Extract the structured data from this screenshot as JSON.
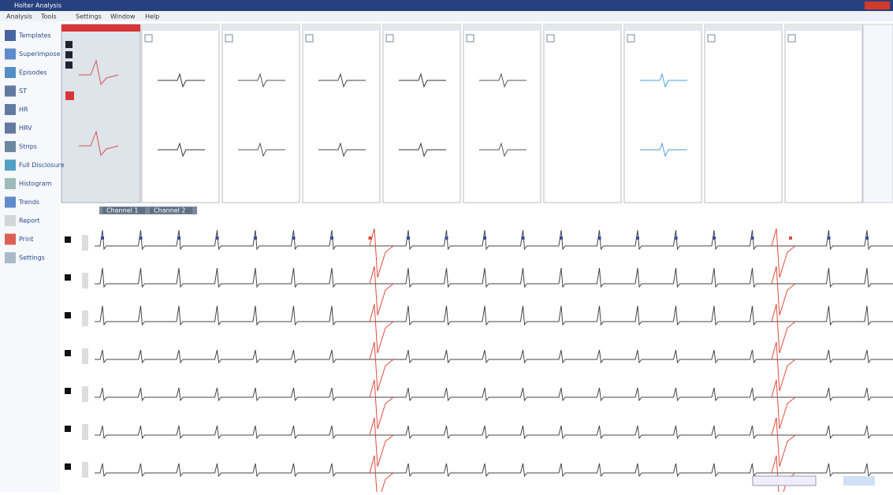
{
  "window": {
    "title": "Holter Analysis"
  },
  "menu": [
    "Analysis",
    "Tools",
    "Settings",
    "Window",
    "Help"
  ],
  "sidebar": [
    "Templates",
    "Superimpose",
    "Episodes",
    "ST",
    "HR",
    "HRV",
    "Strips",
    "Full Disclosure",
    "Histogram",
    "Trends",
    "Report",
    "Print",
    "Settings"
  ],
  "tabs": [
    "Channel 1",
    "Channel 2"
  ]
}
